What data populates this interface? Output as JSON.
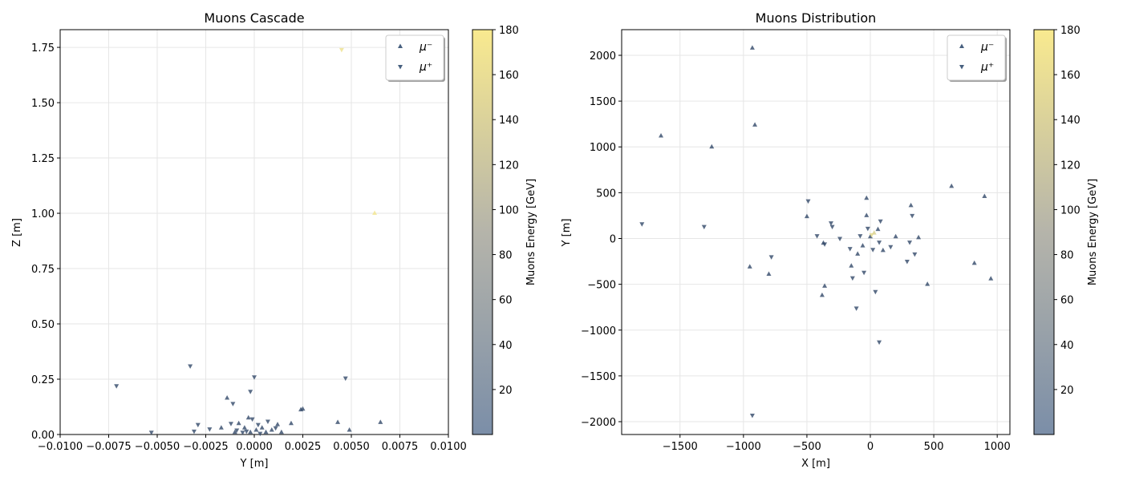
{
  "chart_data": [
    {
      "type": "scatter",
      "title": "Muons Cascade",
      "xlabel": "Y [m]",
      "ylabel": "Z [m]",
      "xlim": [
        -0.01,
        0.01
      ],
      "ylim": [
        0,
        1.83
      ],
      "xticks": [
        -0.01,
        -0.0075,
        -0.005,
        -0.0025,
        0.0,
        0.0025,
        0.005,
        0.0075,
        0.01
      ],
      "xtick_labels": [
        "−0.0100",
        "−0.0075",
        "−0.0050",
        "−0.0025",
        "0.0000",
        "0.0025",
        "0.0050",
        "0.0075",
        "0.0100"
      ],
      "yticks": [
        0.0,
        0.25,
        0.5,
        0.75,
        1.0,
        1.25,
        1.5,
        1.75
      ],
      "ytick_labels": [
        "0.00",
        "0.25",
        "0.50",
        "0.75",
        "1.00",
        "1.25",
        "1.50",
        "1.75"
      ],
      "grid": true,
      "legend_position": "top-right",
      "colorbar": {
        "label": "Muons Energy [GeV]",
        "range": [
          0,
          180
        ],
        "ticks": [
          20,
          40,
          60,
          80,
          100,
          120,
          140,
          160,
          180
        ],
        "tick_labels": [
          "20",
          "40",
          "60",
          "80",
          "100",
          "120",
          "140",
          "160",
          "180"
        ],
        "colors": [
          "#7b8ea8",
          "#f9ea8f"
        ]
      },
      "series": [
        {
          "name": "μ⁻",
          "marker": "triangle-up",
          "points": [
            {
              "x": 0.0062,
              "y": 1.0,
              "energy": 175
            },
            {
              "x": -0.0014,
              "y": 0.165,
              "energy": 5
            },
            {
              "x": 0.0025,
              "y": 0.115,
              "energy": 5
            },
            {
              "x": 0.0024,
              "y": 0.112,
              "energy": 5
            },
            {
              "x": 0.0043,
              "y": 0.055,
              "energy": 5
            },
            {
              "x": 0.0065,
              "y": 0.055,
              "energy": 5
            },
            {
              "x": 0.0049,
              "y": 0.02,
              "energy": 5
            },
            {
              "x": -0.0017,
              "y": 0.03,
              "energy": 5
            },
            {
              "x": -0.0008,
              "y": 0.05,
              "energy": 5
            },
            {
              "x": -0.0005,
              "y": 0.03,
              "energy": 5
            },
            {
              "x": -0.0003,
              "y": 0.075,
              "energy": 5
            },
            {
              "x": 0.0001,
              "y": 0.02,
              "energy": 5
            },
            {
              "x": 0.0006,
              "y": 0.01,
              "energy": 5
            },
            {
              "x": 0.0009,
              "y": 0.02,
              "energy": 5
            },
            {
              "x": 0.0012,
              "y": 0.045,
              "energy": 5
            },
            {
              "x": 0.0014,
              "y": 0.01,
              "energy": 5
            },
            {
              "x": 0.0019,
              "y": 0.05,
              "energy": 5
            },
            {
              "x": -0.001,
              "y": 0.01,
              "energy": 5
            },
            {
              "x": -0.0002,
              "y": 0.01,
              "energy": 5
            },
            {
              "x": 0.0004,
              "y": 0.03,
              "energy": 5
            }
          ]
        },
        {
          "name": "μ⁺",
          "marker": "triangle-down",
          "points": [
            {
              "x": 0.0045,
              "y": 1.74,
              "energy": 170
            },
            {
              "x": -0.0033,
              "y": 0.31,
              "energy": 5
            },
            {
              "x": -0.0071,
              "y": 0.22,
              "energy": 5
            },
            {
              "x": 0.0,
              "y": 0.26,
              "energy": 5
            },
            {
              "x": 0.0047,
              "y": 0.255,
              "energy": 5
            },
            {
              "x": -0.0002,
              "y": 0.195,
              "energy": 5
            },
            {
              "x": -0.0011,
              "y": 0.14,
              "energy": 5
            },
            {
              "x": -0.0053,
              "y": 0.01,
              "energy": 5
            },
            {
              "x": -0.0031,
              "y": 0.015,
              "energy": 5
            },
            {
              "x": -0.0029,
              "y": 0.045,
              "energy": 5
            },
            {
              "x": -0.0023,
              "y": 0.025,
              "energy": 5
            },
            {
              "x": -0.0012,
              "y": 0.05,
              "energy": 5
            },
            {
              "x": -0.0009,
              "y": 0.02,
              "energy": 5
            },
            {
              "x": -0.0006,
              "y": 0.01,
              "energy": 5
            },
            {
              "x": -0.0001,
              "y": 0.07,
              "energy": 5
            },
            {
              "x": 0.0002,
              "y": 0.045,
              "energy": 5
            },
            {
              "x": 0.0007,
              "y": 0.06,
              "energy": 5
            },
            {
              "x": 0.0011,
              "y": 0.03,
              "energy": 5
            },
            {
              "x": -0.0004,
              "y": 0.015,
              "energy": 5
            },
            {
              "x": 0.0003,
              "y": 0.005,
              "energy": 5
            }
          ]
        }
      ]
    },
    {
      "type": "scatter",
      "title": "Muons Distribution",
      "xlabel": "X [m]",
      "ylabel": "Y [m]",
      "xlim": [
        -1960,
        1100
      ],
      "ylim": [
        -2140,
        2280
      ],
      "xticks": [
        -1500,
        -1000,
        -500,
        0,
        500,
        1000
      ],
      "xtick_labels": [
        "−1500",
        "−1000",
        "−500",
        "0",
        "500",
        "1000"
      ],
      "yticks": [
        -2000,
        -1500,
        -1000,
        -500,
        0,
        500,
        1000,
        1500,
        2000
      ],
      "ytick_labels": [
        "−2000",
        "−1500",
        "−1000",
        "−500",
        "0",
        "500",
        "1000",
        "1500",
        "2000"
      ],
      "grid": true,
      "legend_position": "top-right",
      "colorbar": {
        "label": "Muons Energy [GeV]",
        "range": [
          0,
          180
        ],
        "ticks": [
          20,
          40,
          60,
          80,
          100,
          120,
          140,
          160,
          180
        ],
        "tick_labels": [
          "20",
          "40",
          "60",
          "80",
          "100",
          "120",
          "140",
          "160",
          "180"
        ],
        "colors": [
          "#7b8ea8",
          "#f9ea8f"
        ]
      },
      "series": [
        {
          "name": "μ⁻",
          "marker": "triangle-up",
          "points": [
            {
              "x": -930,
              "y": 2080,
              "energy": 5
            },
            {
              "x": -1650,
              "y": 1120,
              "energy": 5
            },
            {
              "x": -1250,
              "y": 1000,
              "energy": 5
            },
            {
              "x": -910,
              "y": 1240,
              "energy": 5
            },
            {
              "x": 640,
              "y": 570,
              "energy": 5
            },
            {
              "x": 900,
              "y": 460,
              "energy": 5
            },
            {
              "x": -30,
              "y": 440,
              "energy": 5
            },
            {
              "x": 320,
              "y": 360,
              "energy": 5
            },
            {
              "x": -500,
              "y": 240,
              "energy": 5
            },
            {
              "x": -30,
              "y": 250,
              "energy": 5
            },
            {
              "x": -950,
              "y": -310,
              "energy": 5
            },
            {
              "x": -800,
              "y": -390,
              "energy": 5
            },
            {
              "x": -360,
              "y": -520,
              "energy": 5
            },
            {
              "x": -380,
              "y": -620,
              "energy": 5
            },
            {
              "x": 450,
              "y": -500,
              "energy": 5
            },
            {
              "x": 820,
              "y": -270,
              "energy": 5
            },
            {
              "x": 950,
              "y": -440,
              "energy": 5
            },
            {
              "x": 380,
              "y": 10,
              "energy": 5
            },
            {
              "x": -150,
              "y": -300,
              "energy": 5
            },
            {
              "x": -60,
              "y": -80,
              "energy": 5
            },
            {
              "x": 60,
              "y": 100,
              "energy": 5
            },
            {
              "x": 100,
              "y": -130,
              "energy": 5
            },
            {
              "x": -100,
              "y": -170,
              "energy": 5
            },
            {
              "x": 0,
              "y": 20,
              "energy": 5
            },
            {
              "x": 200,
              "y": 20,
              "energy": 5
            },
            {
              "x": 30,
              "y": 60,
              "energy": 150
            },
            {
              "x": -370,
              "y": -50,
              "energy": 5
            }
          ]
        },
        {
          "name": "μ⁺",
          "marker": "triangle-down",
          "points": [
            {
              "x": -930,
              "y": -1930,
              "energy": 5
            },
            {
              "x": -1800,
              "y": 160,
              "energy": 5
            },
            {
              "x": -1310,
              "y": 130,
              "energy": 5
            },
            {
              "x": -490,
              "y": 410,
              "energy": 5
            },
            {
              "x": 330,
              "y": 250,
              "energy": 5
            },
            {
              "x": -780,
              "y": -200,
              "energy": 5
            },
            {
              "x": -110,
              "y": -760,
              "energy": 5
            },
            {
              "x": 70,
              "y": -1130,
              "energy": 5
            },
            {
              "x": 40,
              "y": -580,
              "energy": 5
            },
            {
              "x": -420,
              "y": 30,
              "energy": 5
            },
            {
              "x": -310,
              "y": 170,
              "energy": 5
            },
            {
              "x": -300,
              "y": 130,
              "energy": 5
            },
            {
              "x": -240,
              "y": 0,
              "energy": 5
            },
            {
              "x": -160,
              "y": -110,
              "energy": 5
            },
            {
              "x": -50,
              "y": -370,
              "energy": 5
            },
            {
              "x": -140,
              "y": -430,
              "energy": 5
            },
            {
              "x": 80,
              "y": 190,
              "energy": 5
            },
            {
              "x": 160,
              "y": -90,
              "energy": 5
            },
            {
              "x": 290,
              "y": -250,
              "energy": 5
            },
            {
              "x": 350,
              "y": -170,
              "energy": 5
            },
            {
              "x": 310,
              "y": -40,
              "energy": 5
            },
            {
              "x": -20,
              "y": 110,
              "energy": 5
            },
            {
              "x": 20,
              "y": -120,
              "energy": 5
            },
            {
              "x": 70,
              "y": -40,
              "energy": 5
            },
            {
              "x": -80,
              "y": 30,
              "energy": 5
            },
            {
              "x": -360,
              "y": -60,
              "energy": 5
            },
            {
              "x": 10,
              "y": 40,
              "energy": 160
            }
          ]
        }
      ]
    }
  ]
}
